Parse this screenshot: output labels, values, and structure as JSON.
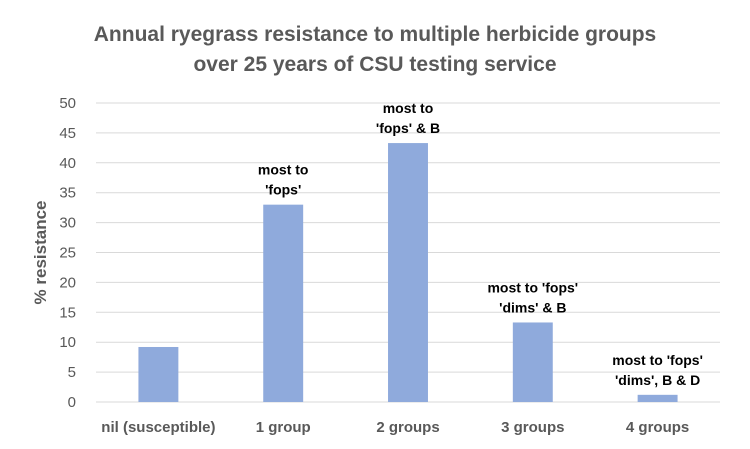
{
  "chart_data": {
    "type": "bar",
    "title_lines": [
      "Annual ryegrass resistance to multiple herbicide groups",
      "over 25 years of CSU testing service"
    ],
    "xlabel": "",
    "ylabel": "% resistance",
    "ylim": [
      0,
      50
    ],
    "yticks": [
      0,
      5,
      10,
      15,
      20,
      25,
      30,
      35,
      40,
      45,
      50
    ],
    "grid": true,
    "legend": "none",
    "categories": [
      "nil (susceptible)",
      "1 group",
      "2 groups",
      "3 groups",
      "4 groups"
    ],
    "values": [
      9.2,
      33.0,
      43.3,
      13.3,
      1.2
    ],
    "annotations": [
      [],
      [
        "most to",
        "'fops'"
      ],
      [
        "most to",
        "'fops' & B"
      ],
      [
        "most to 'fops'",
        "'dims' & B"
      ],
      [
        "most to 'fops'",
        "'dims',  B & D"
      ]
    ],
    "colors": {
      "bar": "#8faadc",
      "grid": "#d9d9d9",
      "title": "#595959",
      "axis_text": "#595959",
      "annotation": "#000000"
    }
  }
}
